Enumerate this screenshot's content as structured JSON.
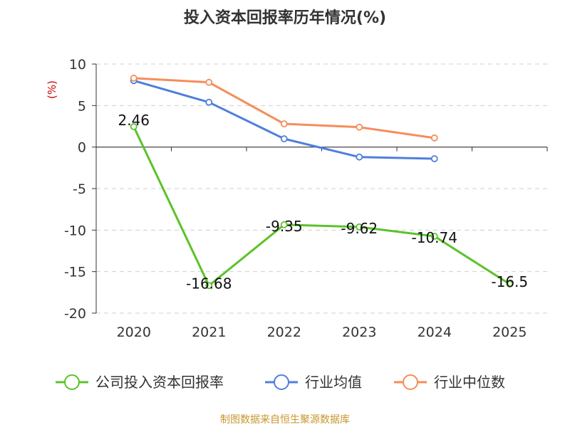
{
  "chart_data": {
    "type": "line",
    "title": "投入资本回报率历年情况(%)",
    "ylabel": "(%)",
    "xlabel": "",
    "categories": [
      "2020",
      "2021",
      "2022",
      "2023",
      "2024",
      "2025"
    ],
    "ylim": [
      -20,
      10
    ],
    "yticks": [
      10,
      5,
      0,
      -5,
      -10,
      -15,
      -20
    ],
    "grid": true,
    "legend_position": "bottom",
    "series": [
      {
        "name": "公司投入资本回报率",
        "color": "#5cc22a",
        "values": [
          2.46,
          -16.68,
          -9.35,
          -9.62,
          -10.74,
          -16.5
        ],
        "labels": [
          "2.46",
          "-16.68",
          "-9.35",
          "-9.62",
          "-10.74",
          "-16.5"
        ]
      },
      {
        "name": "行业均值",
        "color": "#4f7fdc",
        "values": [
          8.0,
          5.4,
          1.0,
          -1.2,
          -1.4,
          null
        ]
      },
      {
        "name": "行业中位数",
        "color": "#f58d5c",
        "values": [
          8.3,
          7.8,
          2.8,
          2.4,
          1.1,
          null
        ]
      }
    ]
  },
  "source": "制图数据来自恒生聚源数据库"
}
